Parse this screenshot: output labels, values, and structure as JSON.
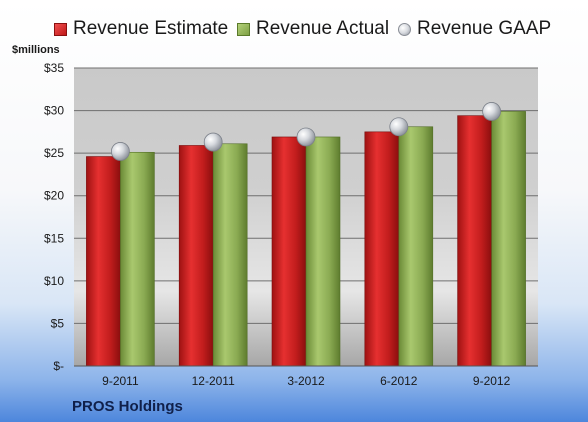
{
  "legend": {
    "estimate": "Revenue Estimate",
    "actual": "Revenue Actual",
    "gaap": "Revenue GAAP"
  },
  "y_unit_label": "$millions",
  "company": "PROS Holdings",
  "colors": {
    "estimate": "#d42323",
    "actual": "#94b55a",
    "gaap": "#c8ccd2"
  },
  "chart_data": {
    "type": "bar",
    "categories": [
      "9-2011",
      "12-2011",
      "3-2012",
      "6-2012",
      "9-2012"
    ],
    "series": [
      {
        "name": "Revenue Estimate",
        "values": [
          24.6,
          25.9,
          26.9,
          27.5,
          29.4
        ]
      },
      {
        "name": "Revenue Actual",
        "values": [
          25.1,
          26.1,
          26.9,
          28.1,
          29.9
        ]
      },
      {
        "name": "Revenue GAAP",
        "values": [
          25.2,
          26.3,
          26.9,
          28.1,
          29.9
        ]
      }
    ],
    "ylabel": "$millions",
    "ylim": [
      0,
      35
    ],
    "yticks": [
      0,
      5,
      10,
      15,
      20,
      25,
      30,
      35
    ],
    "ytick_labels": [
      "$-",
      "$5",
      "$10",
      "$15",
      "$20",
      "$25",
      "$30",
      "$35"
    ],
    "grid": true,
    "legend_position": "top"
  }
}
